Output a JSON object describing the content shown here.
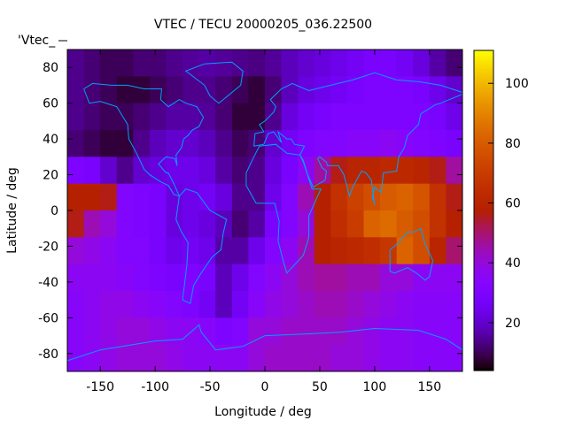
{
  "chart_data": {
    "type": "heatmap",
    "title": "VTEC / TECU 20000205_036.22500",
    "xlabel": "Longitude / deg",
    "ylabel": "Latitude / deg",
    "legend": "'Vtec_",
    "legend_placement": "top-left",
    "xlim": [
      -180,
      180
    ],
    "ylim": [
      -90,
      90
    ],
    "cblim": [
      4,
      111
    ],
    "xticks": [
      -150,
      -100,
      -50,
      0,
      50,
      100,
      150
    ],
    "yticks": [
      -80,
      -60,
      -40,
      -20,
      0,
      20,
      40,
      60,
      80
    ],
    "cbticks": [
      20,
      40,
      60,
      80,
      100
    ],
    "grid": false,
    "cell_size_deg": 15,
    "lon_centers": [
      -172.5,
      -157.5,
      -142.5,
      -127.5,
      -112.5,
      -97.5,
      -82.5,
      -67.5,
      -52.5,
      -37.5,
      -22.5,
      -7.5,
      7.5,
      22.5,
      37.5,
      52.5,
      67.5,
      82.5,
      97.5,
      112.5,
      127.5,
      142.5,
      157.5,
      172.5
    ],
    "lat_centers": [
      82.5,
      67.5,
      52.5,
      37.5,
      22.5,
      7.5,
      -7.5,
      -22.5,
      -37.5,
      -52.5,
      -67.5,
      -82.5
    ],
    "values": [
      [
        14,
        12,
        10,
        10,
        12,
        12,
        14,
        15,
        16,
        15,
        14,
        13,
        15,
        18,
        20,
        22,
        24,
        26,
        28,
        28,
        26,
        22,
        16,
        12
      ],
      [
        14,
        12,
        10,
        8,
        8,
        10,
        12,
        14,
        14,
        12,
        10,
        8,
        12,
        18,
        22,
        24,
        26,
        28,
        30,
        30,
        30,
        28,
        24,
        20
      ],
      [
        14,
        12,
        10,
        10,
        12,
        14,
        16,
        16,
        15,
        12,
        8,
        8,
        14,
        22,
        26,
        28,
        30,
        30,
        30,
        30,
        30,
        30,
        28,
        24
      ],
      [
        12,
        10,
        8,
        8,
        14,
        18,
        20,
        20,
        18,
        14,
        10,
        12,
        20,
        26,
        30,
        32,
        32,
        34,
        34,
        36,
        34,
        32,
        30,
        28
      ],
      [
        30,
        28,
        20,
        14,
        20,
        22,
        24,
        24,
        22,
        16,
        12,
        14,
        22,
        28,
        36,
        46,
        56,
        60,
        60,
        62,
        62,
        60,
        56,
        46
      ],
      [
        58,
        58,
        56,
        32,
        30,
        28,
        22,
        24,
        26,
        22,
        14,
        14,
        24,
        32,
        44,
        58,
        66,
        72,
        76,
        80,
        82,
        78,
        66,
        56
      ],
      [
        56,
        44,
        40,
        32,
        30,
        28,
        22,
        24,
        22,
        18,
        12,
        16,
        28,
        32,
        40,
        58,
        64,
        70,
        82,
        84,
        80,
        76,
        66,
        58
      ],
      [
        40,
        38,
        36,
        32,
        32,
        28,
        24,
        26,
        24,
        16,
        16,
        24,
        32,
        36,
        44,
        58,
        60,
        62,
        64,
        68,
        82,
        76,
        60,
        50
      ],
      [
        36,
        36,
        36,
        34,
        32,
        30,
        28,
        30,
        28,
        18,
        24,
        32,
        36,
        40,
        44,
        46,
        46,
        44,
        44,
        40,
        40,
        36,
        36,
        36
      ],
      [
        34,
        36,
        38,
        38,
        36,
        34,
        32,
        30,
        26,
        18,
        26,
        34,
        38,
        40,
        42,
        44,
        44,
        42,
        40,
        38,
        36,
        34,
        34,
        34
      ],
      [
        34,
        36,
        38,
        40,
        40,
        38,
        36,
        36,
        34,
        30,
        32,
        40,
        40,
        42,
        42,
        42,
        42,
        40,
        38,
        36,
        36,
        34,
        34,
        34
      ],
      [
        34,
        36,
        38,
        40,
        40,
        40,
        38,
        36,
        36,
        36,
        36,
        40,
        42,
        42,
        42,
        42,
        40,
        40,
        38,
        36,
        36,
        34,
        34,
        34
      ]
    ],
    "coastline_color": "#00a0ff"
  }
}
